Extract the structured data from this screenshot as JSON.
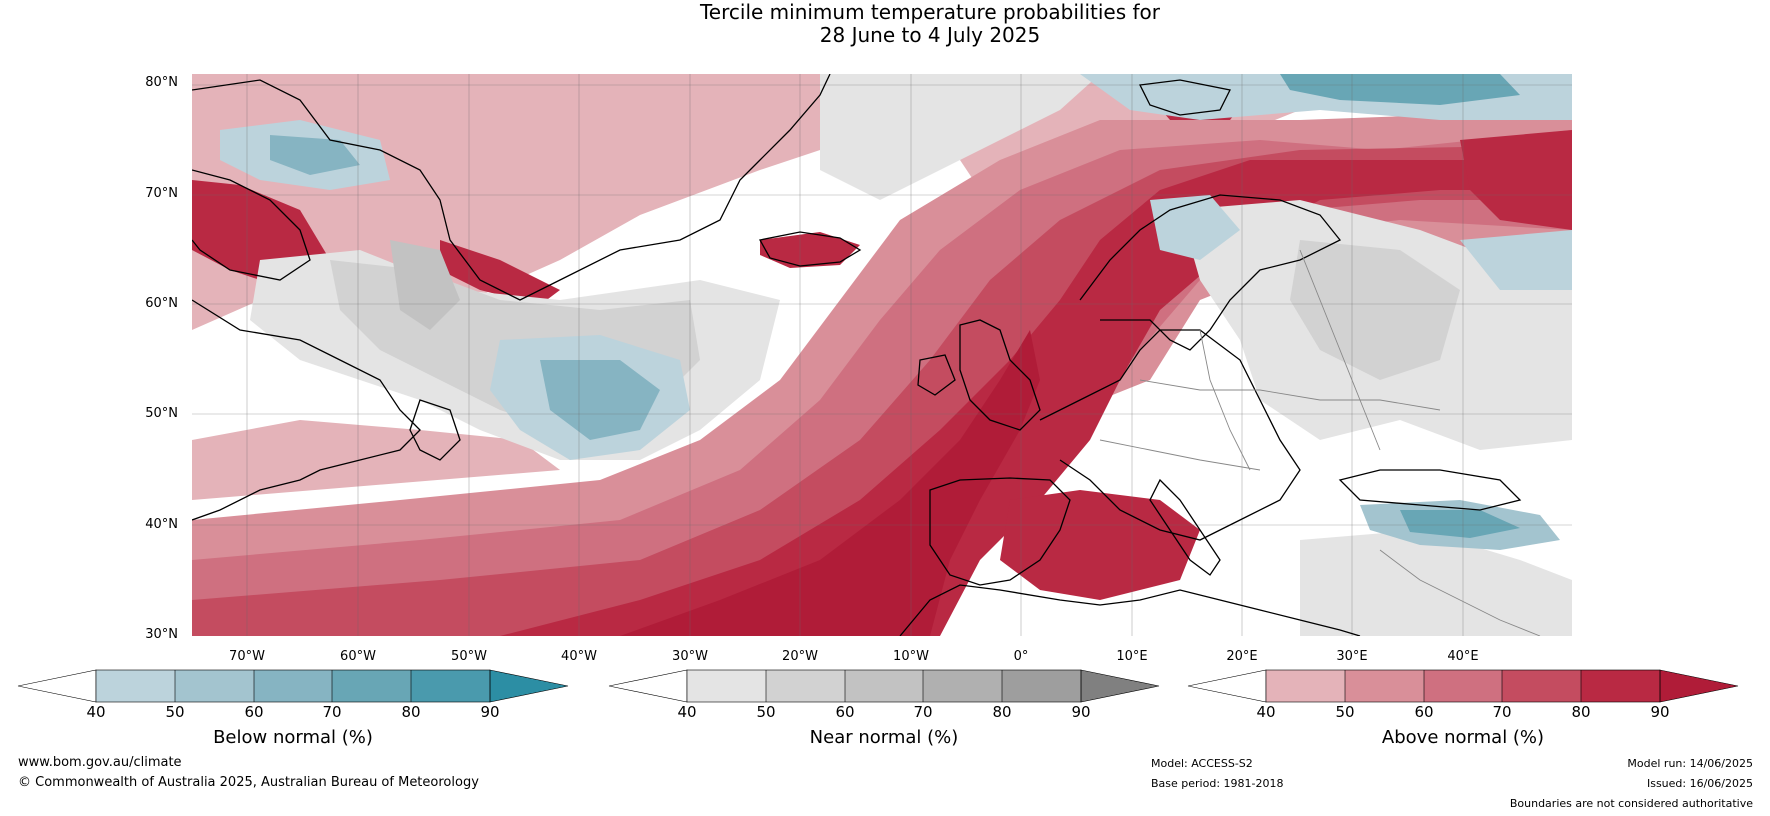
{
  "title": {
    "line1": "Tercile minimum temperature probabilities for",
    "line2": "28 June to 4 July 2025"
  },
  "map": {
    "lat_labels": [
      "80°N",
      "70°N",
      "60°N",
      "50°N",
      "40°N",
      "30°N"
    ],
    "lon_labels": [
      "70°W",
      "60°W",
      "50°W",
      "40°W",
      "30°W",
      "20°W",
      "10°W",
      "0°",
      "10°E",
      "20°E",
      "30°E",
      "40°E"
    ],
    "colors": {
      "above": [
        "#e4b3b9",
        "#d98f99",
        "#cf7080",
        "#c44c60",
        "#b92943",
        "#b01c38"
      ],
      "below": [
        "#bcd3dc",
        "#a3c4cf",
        "#86b4c2",
        "#68a6b5",
        "#4a9aad",
        "#2c8ea4"
      ],
      "near": [
        "#e4e4e4",
        "#d2d2d2",
        "#c2c2c2",
        "#b0b0b0",
        "#9e9e9e",
        "#808080"
      ]
    }
  },
  "colorbars": {
    "below": {
      "title": "Below normal (%)",
      "ticks": [
        "40",
        "50",
        "60",
        "70",
        "80",
        "90"
      ]
    },
    "near": {
      "title": "Near normal (%)",
      "ticks": [
        "40",
        "50",
        "60",
        "70",
        "80",
        "90"
      ]
    },
    "above": {
      "title": "Above normal (%)",
      "ticks": [
        "40",
        "50",
        "60",
        "70",
        "80",
        "90"
      ]
    }
  },
  "footer": {
    "url": "www.bom.gov.au/climate",
    "copyright": "© Commonwealth of Australia 2025, Australian Bureau of Meteorology",
    "model": "Model: ACCESS-S2",
    "base_period": "Base period: 1981-2018",
    "model_run": "Model run: 14/06/2025",
    "issued": "Issued: 16/06/2025",
    "disclaimer": "Boundaries are not considered authoritative"
  }
}
